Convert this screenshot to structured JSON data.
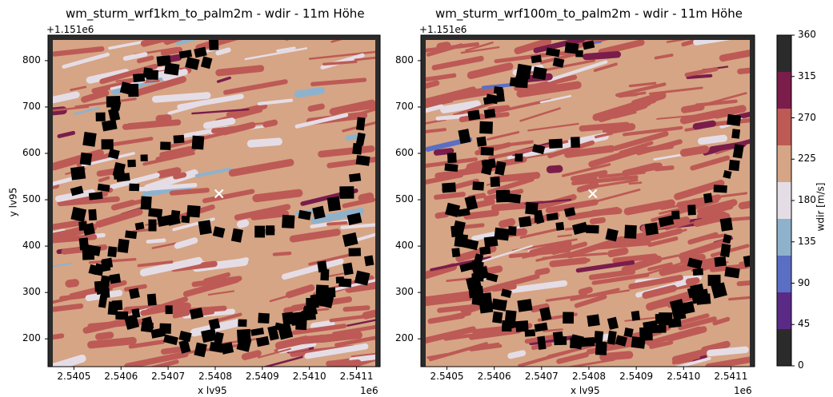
{
  "charts": [
    {
      "title": "wm_sturm_wrf1km_to_palm2m - wdir - 11m Höhe",
      "offset_label": "+1.151e6",
      "x_scale_label": "1e6",
      "xlabel": "x lv95",
      "ylabel": "y lv95",
      "xticks": [
        "2.5405",
        "2.5406",
        "2.5407",
        "2.5408",
        "2.5409",
        "2.5410",
        "2.5411"
      ],
      "yticks": [
        "200",
        "300",
        "400",
        "500",
        "600",
        "700",
        "800"
      ]
    },
    {
      "title": "wm_sturm_wrf100m_to_palm2m - wdir - 11m Höhe",
      "offset_label": "+1.151e6",
      "x_scale_label": "1e6",
      "xlabel": "x lv95",
      "ylabel": "",
      "xticks": [
        "2.5405",
        "2.5406",
        "2.5407",
        "2.5408",
        "2.5409",
        "2.5410",
        "2.5411"
      ],
      "yticks": [
        "200",
        "300",
        "400",
        "500",
        "600",
        "700",
        "800"
      ]
    }
  ],
  "colorbar": {
    "label": "wdir [m/s]",
    "ticks": [
      "0",
      "45",
      "90",
      "135",
      "180",
      "225",
      "270",
      "315",
      "360"
    ],
    "colors": [
      "#2b2b2b",
      "#5b2a86",
      "#5a6fc4",
      "#8fb2cc",
      "#e5dde6",
      "#d6a585",
      "#bd5a55",
      "#7a1d4a",
      "#2b2b2b"
    ]
  },
  "chart_data": [
    {
      "type": "heatmap",
      "title": "wm_sturm_wrf1km_to_palm2m - wdir - 11m Höhe",
      "xlabel": "x lv95",
      "ylabel": "y lv95",
      "x_range": [
        2540445,
        2541150
      ],
      "y_range": [
        1151140,
        1151855
      ],
      "colorbar_range": [
        0,
        360
      ],
      "dominant_value_range": [
        225,
        270
      ],
      "marker": {
        "symbol": "x",
        "x": 2540808,
        "y": 1151513
      }
    },
    {
      "type": "heatmap",
      "title": "wm_sturm_wrf100m_to_palm2m - wdir - 11m Höhe",
      "xlabel": "x lv95",
      "ylabel": "",
      "x_range": [
        2540445,
        2541150
      ],
      "y_range": [
        1151140,
        1151855
      ],
      "colorbar_range": [
        0,
        360
      ],
      "dominant_value_range": [
        225,
        315
      ],
      "marker": {
        "symbol": "x",
        "x": 2540808,
        "y": 1151513
      }
    }
  ]
}
